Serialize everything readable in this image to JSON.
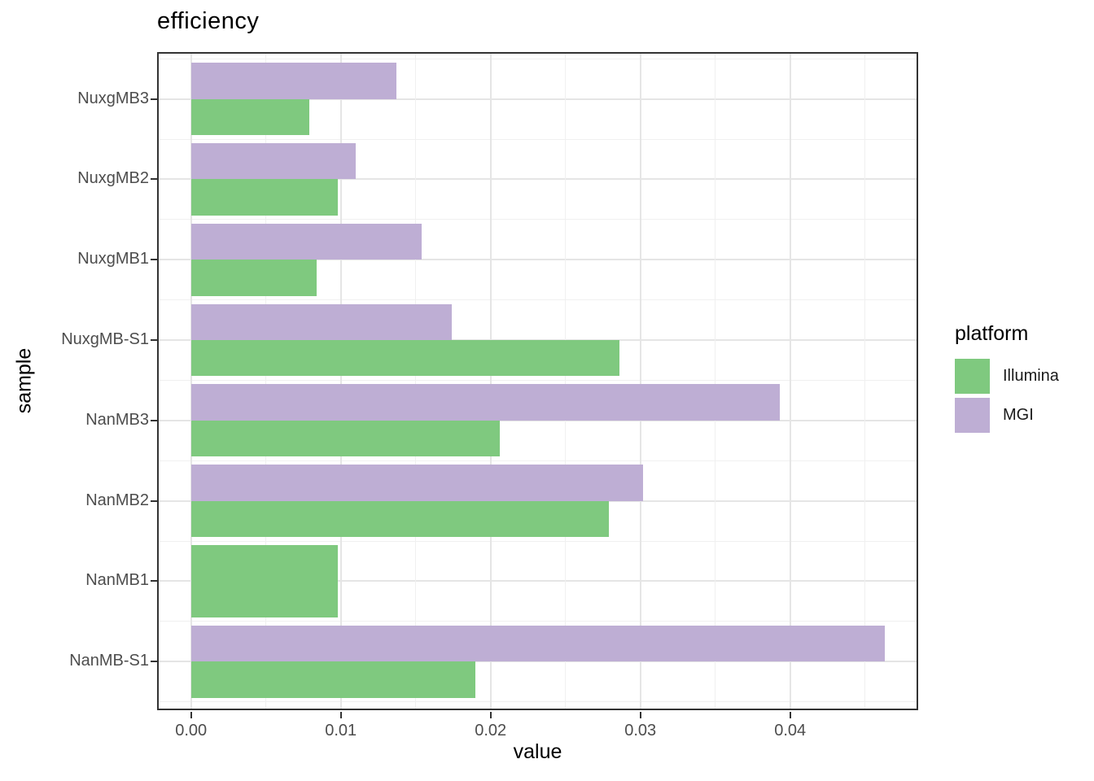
{
  "title": "efficiency",
  "chart_data": {
    "type": "bar",
    "orientation": "horizontal",
    "title": "efficiency",
    "xlabel": "value",
    "ylabel": "sample",
    "categories": [
      "NuxgMB3",
      "NuxgMB2",
      "NuxgMB1",
      "NuxgMB-S1",
      "NanMB3",
      "NanMB2",
      "NanMB1",
      "NanMB-S1"
    ],
    "series": [
      {
        "name": "Illumina",
        "color": "#7FC97F",
        "values": [
          0.0079,
          0.0098,
          0.0084,
          0.0286,
          0.0206,
          0.0279,
          0.0098,
          0.019
        ]
      },
      {
        "name": "MGI",
        "color": "#BEAED4",
        "values": [
          0.0137,
          0.011,
          0.0154,
          0.0174,
          0.0393,
          0.0302,
          null,
          0.0463
        ]
      }
    ],
    "x_ticks": [
      0,
      0.01,
      0.02,
      0.03,
      0.04
    ],
    "x_tick_labels": [
      "0.00",
      "0.01",
      "0.02",
      "0.03",
      "0.04"
    ],
    "xlim": [
      -0.0023,
      0.0486
    ],
    "grid": true,
    "legend_position": "right"
  },
  "legend": {
    "title": "platform",
    "items": [
      {
        "label": "Illumina",
        "color": "#7FC97F"
      },
      {
        "label": "MGI",
        "color": "#BEAED4"
      }
    ]
  },
  "style_colors": {
    "panel_border": "#333333",
    "grid_major": "#e5e5e5",
    "grid_minor": "#f0f0f0",
    "tick_text": "#4d4d4d"
  }
}
